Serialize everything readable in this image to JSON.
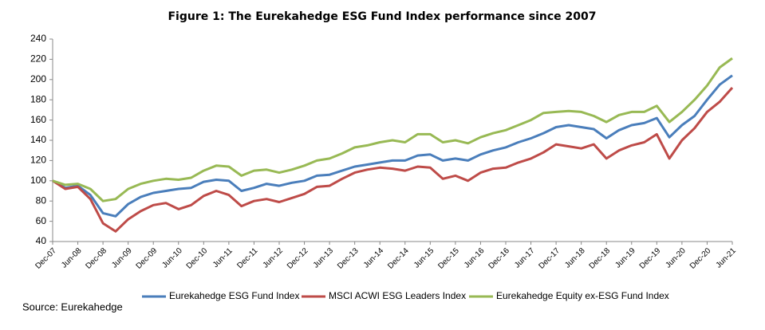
{
  "chart_data": {
    "type": "line",
    "title": "Figure 1: The Eurekahedge ESG Fund Index performance since 2007",
    "source": "Source: Eurekahedge",
    "categories": [
      "Dec-07",
      null,
      "Jun-08",
      null,
      "Dec-08",
      null,
      "Jun-09",
      null,
      "Dec-09",
      null,
      "Jun-10",
      null,
      "Dec-10",
      null,
      "Jun-11",
      null,
      "Dec-11",
      null,
      "Jun-12",
      null,
      "Dec-12",
      null,
      "Jun-13",
      null,
      "Dec-13",
      null,
      "Jun-14",
      null,
      "Dec-14",
      null,
      "Jun-15",
      null,
      "Dec-15",
      null,
      "Jun-16",
      null,
      "Dec-16",
      null,
      "Jun-17",
      null,
      "Dec-17",
      null,
      "Jun-18",
      null,
      "Dec-18",
      null,
      "Jun-19",
      null,
      "Dec-19",
      null,
      "Jun-20",
      null,
      "Dec-20",
      null,
      "Jun-21"
    ],
    "series": [
      {
        "name": "Eurekahedge ESG Fund Index",
        "color": "#4a7ebb",
        "values": [
          100,
          93,
          95,
          86,
          68,
          65,
          77,
          84,
          88,
          90,
          92,
          93,
          99,
          101,
          100,
          90,
          93,
          97,
          95,
          98,
          100,
          105,
          106,
          110,
          114,
          116,
          118,
          120,
          120,
          125,
          126,
          120,
          122,
          120,
          126,
          130,
          133,
          138,
          142,
          147,
          153,
          155,
          153,
          151,
          142,
          150,
          155,
          157,
          162,
          143,
          155,
          164,
          180,
          195,
          204
        ]
      },
      {
        "name": "MSCI ACWI ESG Leaders Index",
        "color": "#be4b48",
        "values": [
          100,
          92,
          94,
          82,
          58,
          50,
          62,
          70,
          76,
          78,
          72,
          76,
          85,
          90,
          86,
          75,
          80,
          82,
          79,
          83,
          87,
          94,
          95,
          102,
          108,
          111,
          113,
          112,
          110,
          114,
          113,
          102,
          105,
          100,
          108,
          112,
          113,
          118,
          122,
          128,
          136,
          134,
          132,
          136,
          122,
          130,
          135,
          138,
          146,
          122,
          140,
          152,
          168,
          178,
          192
        ]
      },
      {
        "name": "Eurekahedge Equity ex-ESG Fund Index",
        "color": "#98b954",
        "values": [
          100,
          96,
          97,
          92,
          80,
          82,
          92,
          97,
          100,
          102,
          101,
          103,
          110,
          115,
          114,
          105,
          110,
          111,
          108,
          111,
          115,
          120,
          122,
          127,
          133,
          135,
          138,
          140,
          138,
          146,
          146,
          138,
          140,
          137,
          143,
          147,
          150,
          155,
          160,
          167,
          168,
          169,
          168,
          164,
          158,
          165,
          168,
          168,
          174,
          158,
          168,
          180,
          194,
          212,
          221
        ]
      }
    ],
    "ylim": [
      40,
      240
    ],
    "yticks": [
      40,
      60,
      80,
      100,
      120,
      140,
      160,
      180,
      200,
      220,
      240
    ],
    "grid": false,
    "legend": "bottom"
  }
}
